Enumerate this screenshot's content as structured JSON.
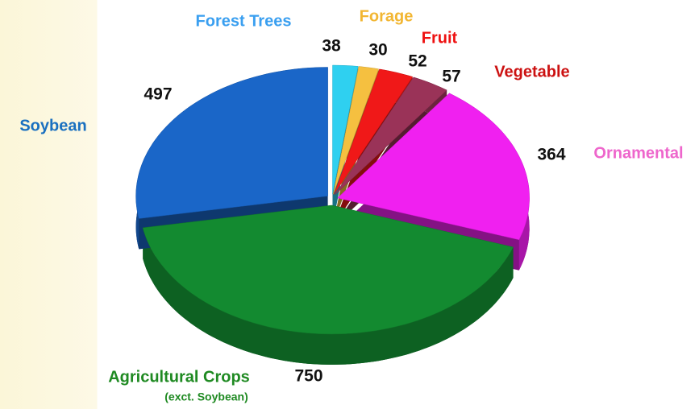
{
  "chart_data": {
    "type": "pie3d",
    "categories": [
      "Forest Trees",
      "Forage",
      "Fruit",
      "Vegetable",
      "Ornamental",
      "Agricultural Crops",
      "Soybean"
    ],
    "values": [
      38,
      30,
      52,
      57,
      364,
      750,
      497
    ],
    "colors": [
      "#2fd0f0",
      "#f5c040",
      "#f01818",
      "#9a3358",
      "#f020f0",
      "#138a30",
      "#1a66c8"
    ],
    "label_colors": [
      "#3a9ff0",
      "#f2b632",
      "#ee1111",
      "#cc1111",
      "#ee66cc",
      "#1f8a22",
      "#1a70c0"
    ],
    "annotations": [
      {
        "text": "(exct. Soybean)"
      }
    ]
  }
}
